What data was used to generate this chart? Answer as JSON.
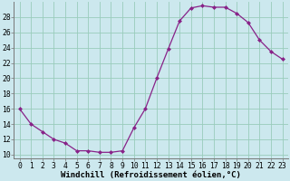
{
  "x": [
    0,
    1,
    2,
    3,
    4,
    5,
    6,
    7,
    8,
    9,
    10,
    11,
    12,
    13,
    14,
    15,
    16,
    17,
    18,
    19,
    20,
    21,
    22,
    23
  ],
  "y": [
    16,
    14,
    13,
    12,
    11.5,
    10.5,
    10.5,
    10.3,
    10.3,
    10.5,
    13.5,
    16,
    20,
    23.8,
    27.5,
    29.2,
    29.5,
    29.3,
    29.3,
    28.5,
    27.3,
    25,
    23.5,
    22.5
  ],
  "line_color": "#882288",
  "marker": "D",
  "markersize": 2.0,
  "linewidth": 0.9,
  "bg_color": "#cce8ee",
  "grid_color": "#99ccbb",
  "xlabel": "Windchill (Refroidissement éolien,°C)",
  "xlabel_fontsize": 6.5,
  "tick_fontsize": 5.8,
  "ylim": [
    9.5,
    30.0
  ],
  "yticks": [
    10,
    12,
    14,
    16,
    18,
    20,
    22,
    24,
    26,
    28
  ],
  "xticks": [
    0,
    1,
    2,
    3,
    4,
    5,
    6,
    7,
    8,
    9,
    10,
    11,
    12,
    13,
    14,
    15,
    16,
    17,
    18,
    19,
    20,
    21,
    22,
    23
  ]
}
